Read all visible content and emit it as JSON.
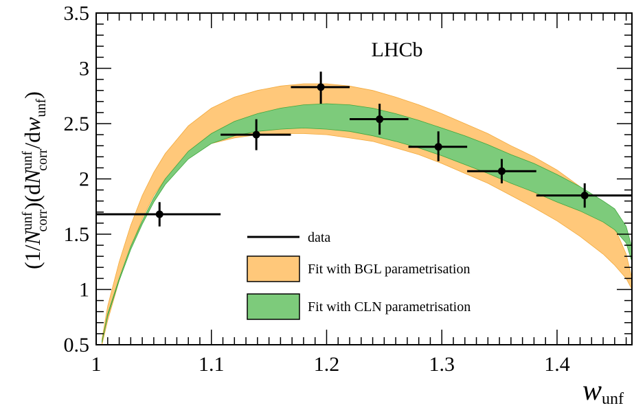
{
  "chart_data": {
    "type": "line",
    "experiment_label": "LHCb",
    "xlabel": {
      "main": "w",
      "sub": "unf"
    },
    "ylabel": {
      "p1": "(1/",
      "n1": "N",
      "sup1": "unf",
      "sub1": "corr",
      "p2": ")(d",
      "n2": "N",
      "sup2": "unf",
      "sub2": "corr",
      "p3": "/d",
      "w": "w",
      "sub3": "unf",
      "p4": ")"
    },
    "xlim": [
      1.0,
      1.465
    ],
    "ylim": [
      0.5,
      3.5
    ],
    "x_ticks": [
      {
        "value": 1.0,
        "label": "1"
      },
      {
        "value": 1.1,
        "label": "1.1"
      },
      {
        "value": 1.2,
        "label": "1.2"
      },
      {
        "value": 1.3,
        "label": "1.3"
      },
      {
        "value": 1.4,
        "label": "1.4"
      }
    ],
    "y_ticks": [
      {
        "value": 0.5,
        "label": "0.5"
      },
      {
        "value": 1.0,
        "label": "1"
      },
      {
        "value": 1.5,
        "label": "1.5"
      },
      {
        "value": 2.0,
        "label": "2"
      },
      {
        "value": 2.5,
        "label": "2.5"
      },
      {
        "value": 3.0,
        "label": "3"
      },
      {
        "value": 3.5,
        "label": "3.5"
      }
    ],
    "legend": [
      {
        "name": "data",
        "kind": "line"
      },
      {
        "name": "Fit with BGL parametrisation",
        "kind": "box",
        "color": "#FFC87A"
      },
      {
        "name": "Fit with CLN parametrisation",
        "kind": "box",
        "color": "#7DCB7B"
      }
    ],
    "data_points": [
      {
        "x": 1.055,
        "xlo": 1.0,
        "xhi": 1.108,
        "y": 1.68,
        "ylo": 1.57,
        "yhi": 1.79
      },
      {
        "x": 1.139,
        "xlo": 1.108,
        "xhi": 1.169,
        "y": 2.4,
        "ylo": 2.26,
        "yhi": 2.54
      },
      {
        "x": 1.195,
        "xlo": 1.169,
        "xhi": 1.22,
        "y": 2.83,
        "ylo": 2.68,
        "yhi": 2.97
      },
      {
        "x": 1.246,
        "xlo": 1.22,
        "xhi": 1.271,
        "y": 2.54,
        "ylo": 2.4,
        "yhi": 2.68
      },
      {
        "x": 1.297,
        "xlo": 1.271,
        "xhi": 1.322,
        "y": 2.29,
        "ylo": 2.16,
        "yhi": 2.43
      },
      {
        "x": 1.352,
        "xlo": 1.322,
        "xhi": 1.382,
        "y": 2.07,
        "ylo": 1.96,
        "yhi": 2.18
      },
      {
        "x": 1.424,
        "xlo": 1.382,
        "xhi": 1.465,
        "y": 1.85,
        "ylo": 1.74,
        "yhi": 1.96
      }
    ],
    "bgl_band": {
      "color": "#FFC87A",
      "x": [
        1.005,
        1.01,
        1.02,
        1.03,
        1.04,
        1.05,
        1.06,
        1.08,
        1.1,
        1.12,
        1.14,
        1.16,
        1.18,
        1.2,
        1.22,
        1.24,
        1.26,
        1.28,
        1.3,
        1.32,
        1.34,
        1.36,
        1.38,
        1.4,
        1.42,
        1.44,
        1.45,
        1.46,
        1.465
      ],
      "upper": [
        0.55,
        0.85,
        1.25,
        1.58,
        1.85,
        2.06,
        2.23,
        2.48,
        2.64,
        2.74,
        2.8,
        2.84,
        2.86,
        2.86,
        2.84,
        2.8,
        2.74,
        2.67,
        2.59,
        2.5,
        2.41,
        2.3,
        2.2,
        2.08,
        1.93,
        1.72,
        1.56,
        1.32,
        1.1
      ],
      "lower": [
        0.5,
        0.72,
        1.08,
        1.38,
        1.64,
        1.85,
        2.0,
        2.21,
        2.32,
        2.37,
        2.4,
        2.41,
        2.41,
        2.4,
        2.37,
        2.34,
        2.28,
        2.22,
        2.14,
        2.05,
        1.96,
        1.85,
        1.74,
        1.62,
        1.48,
        1.32,
        1.22,
        1.1,
        1.0
      ]
    },
    "cln_band": {
      "color": "#7DCB7B",
      "x": [
        1.005,
        1.01,
        1.02,
        1.03,
        1.04,
        1.05,
        1.06,
        1.08,
        1.1,
        1.12,
        1.14,
        1.16,
        1.18,
        1.2,
        1.22,
        1.24,
        1.26,
        1.28,
        1.3,
        1.32,
        1.34,
        1.36,
        1.38,
        1.4,
        1.42,
        1.44,
        1.45,
        1.46,
        1.465
      ],
      "upper": [
        0.53,
        0.78,
        1.1,
        1.39,
        1.62,
        1.83,
        2.0,
        2.25,
        2.41,
        2.52,
        2.59,
        2.64,
        2.67,
        2.68,
        2.67,
        2.64,
        2.59,
        2.53,
        2.46,
        2.39,
        2.31,
        2.22,
        2.14,
        2.04,
        1.93,
        1.8,
        1.73,
        1.57,
        1.38
      ],
      "lower": [
        0.52,
        0.76,
        1.08,
        1.36,
        1.59,
        1.79,
        1.95,
        2.18,
        2.32,
        2.39,
        2.43,
        2.45,
        2.46,
        2.45,
        2.43,
        2.39,
        2.34,
        2.28,
        2.21,
        2.13,
        2.05,
        1.96,
        1.88,
        1.79,
        1.71,
        1.61,
        1.54,
        1.42,
        1.25
      ]
    }
  }
}
